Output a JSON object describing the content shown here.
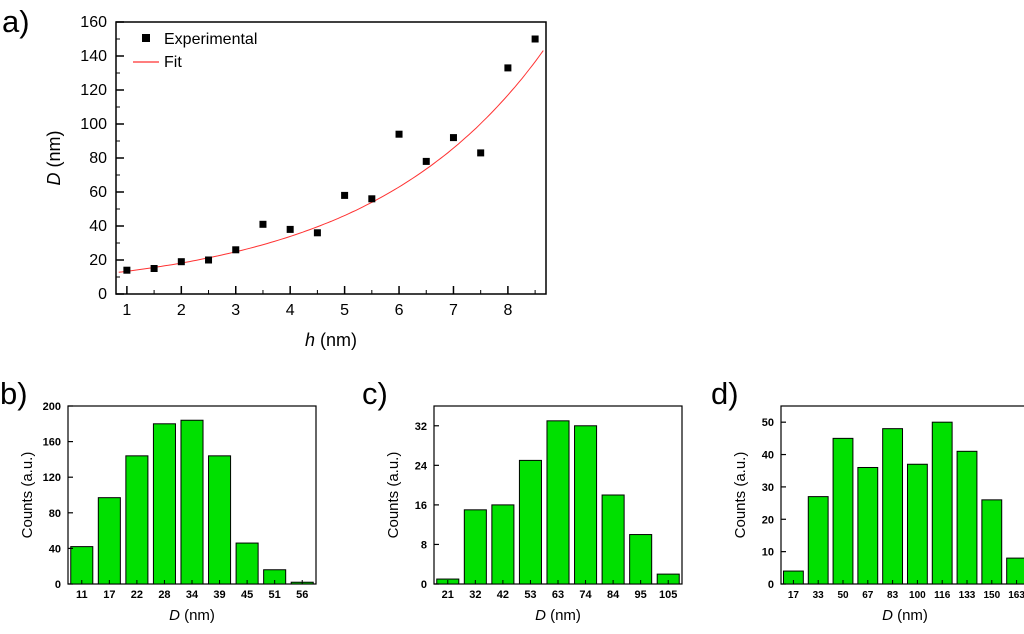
{
  "panels": {
    "a": {
      "label": "a)"
    },
    "b": {
      "label": "b)"
    },
    "c": {
      "label": "c)"
    },
    "d": {
      "label": "d)"
    }
  },
  "chart_data": [
    {
      "id": "a",
      "type": "scatter",
      "xlabel": {
        "italic": "h",
        "rest": " (nm)"
      },
      "ylabel": {
        "italic": "D",
        "rest": " (nm)"
      },
      "xlim": [
        0.8,
        8.7
      ],
      "ylim": [
        0,
        160
      ],
      "xticks": [
        1,
        2,
        3,
        4,
        5,
        6,
        7,
        8
      ],
      "yticks": [
        0,
        20,
        40,
        60,
        80,
        100,
        120,
        140,
        160
      ],
      "legend_position": "top-left",
      "series": [
        {
          "name": "Experimental",
          "type": "points",
          "marker": "square",
          "color": "#000000",
          "points": [
            [
              1,
              14
            ],
            [
              1.5,
              15
            ],
            [
              2,
              19
            ],
            [
              2.5,
              20
            ],
            [
              3,
              26
            ],
            [
              3.5,
              41
            ],
            [
              4,
              38
            ],
            [
              4.5,
              36
            ],
            [
              5,
              58
            ],
            [
              5.5,
              56
            ],
            [
              6,
              94
            ],
            [
              6.5,
              78
            ],
            [
              7,
              92
            ],
            [
              7.5,
              83
            ],
            [
              8,
              133
            ],
            [
              8.5,
              150
            ]
          ]
        },
        {
          "name": "Fit",
          "type": "curve",
          "color": "#ff3232",
          "fit": {
            "model": "a*exp(b*h)",
            "a": 9.8,
            "b": 0.31,
            "x_start": 0.85,
            "x_end": 8.65
          }
        }
      ]
    },
    {
      "id": "b",
      "type": "bar",
      "xlabel": {
        "italic": "D",
        "rest": " (nm)"
      },
      "ylabel": "Counts (a.u.)",
      "categories": [
        "11",
        "17",
        "22",
        "28",
        "34",
        "39",
        "45",
        "51",
        "56"
      ],
      "values": [
        42,
        97,
        144,
        180,
        184,
        144,
        46,
        16,
        2
      ],
      "ylim": [
        0,
        200
      ],
      "yticks": [
        0,
        40,
        80,
        120,
        160,
        200
      ],
      "bar_color": "#00e000",
      "bar_edge": "#000000"
    },
    {
      "id": "c",
      "type": "bar",
      "xlabel": {
        "italic": "D",
        "rest": " (nm)"
      },
      "ylabel": "Counts (a.u.)",
      "categories": [
        "21",
        "32",
        "42",
        "53",
        "63",
        "74",
        "84",
        "95",
        "105"
      ],
      "values": [
        1,
        15,
        16,
        25,
        33,
        32,
        18,
        10,
        2
      ],
      "ylim": [
        0,
        36
      ],
      "yticks": [
        0,
        8,
        16,
        24,
        32
      ],
      "bar_color": "#00e000",
      "bar_edge": "#000000"
    },
    {
      "id": "d",
      "type": "bar",
      "xlabel": {
        "italic": "D",
        "rest": " (nm)"
      },
      "ylabel": "Counts (a.u.)",
      "categories": [
        "17",
        "33",
        "50",
        "67",
        "83",
        "100",
        "116",
        "133",
        "150",
        "163"
      ],
      "values": [
        4,
        27,
        45,
        36,
        48,
        37,
        50,
        41,
        26,
        8
      ],
      "ylim": [
        0,
        55
      ],
      "yticks": [
        0,
        10,
        20,
        30,
        40,
        50
      ],
      "bar_color": "#00e000",
      "bar_edge": "#000000"
    }
  ]
}
